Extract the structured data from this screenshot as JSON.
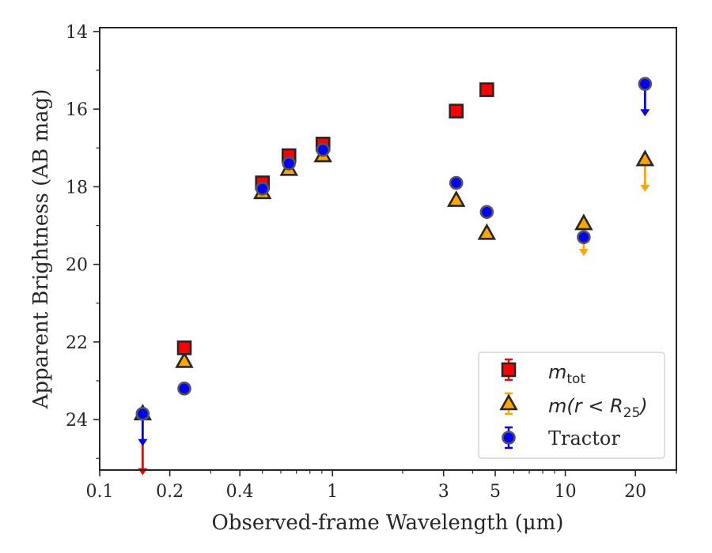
{
  "chart_data": {
    "type": "scatter",
    "xlabel": "Observed-frame Wavelength (μm)",
    "ylabel": "Apparent Brightness (AB mag)",
    "xscale": "log",
    "xlim": [
      0.1,
      30
    ],
    "ylim": [
      25.3,
      13.9
    ],
    "y_inverted": true,
    "x_ticks": [
      {
        "value": 0.1,
        "label": "0.1"
      },
      {
        "value": 0.2,
        "label": "0.2"
      },
      {
        "value": 0.4,
        "label": "0.4"
      },
      {
        "value": 1,
        "label": "1"
      },
      {
        "value": 3,
        "label": "3"
      },
      {
        "value": 5,
        "label": "5"
      },
      {
        "value": 10,
        "label": "10"
      },
      {
        "value": 20,
        "label": "20"
      }
    ],
    "x_minor_ticks": [
      0.3,
      0.5,
      0.6,
      0.7,
      0.8,
      0.9,
      2,
      4,
      6,
      7,
      8,
      9,
      30
    ],
    "y_ticks": [
      {
        "value": 14,
        "label": "14"
      },
      {
        "value": 16,
        "label": "16"
      },
      {
        "value": 18,
        "label": "18"
      },
      {
        "value": 20,
        "label": "20"
      },
      {
        "value": 22,
        "label": "22"
      },
      {
        "value": 24,
        "label": "24"
      }
    ],
    "y_minor_ticks": [
      15,
      17,
      19,
      21,
      23,
      25
    ],
    "grid": false,
    "legend_position": "lower-right",
    "series": [
      {
        "name": "m_tot",
        "legend_main": "m",
        "legend_sub": "tot",
        "marker": "square",
        "color": "#ff0000",
        "points": [
          {
            "x": 0.153,
            "y": 24.6,
            "upper_limit": true
          },
          {
            "x": 0.231,
            "y": 22.15
          },
          {
            "x": 0.5,
            "y": 17.9
          },
          {
            "x": 0.65,
            "y": 17.2
          },
          {
            "x": 0.91,
            "y": 16.9
          },
          {
            "x": 3.4,
            "y": 16.05
          },
          {
            "x": 4.6,
            "y": 15.5
          }
        ]
      },
      {
        "name": "m(r < R25)",
        "legend_main": "m(r < R",
        "legend_sub": "25",
        "legend_tail": ")",
        "marker": "triangle",
        "color": "#ffa500",
        "points": [
          {
            "x": 0.153,
            "y": 23.85
          },
          {
            "x": 0.231,
            "y": 22.5
          },
          {
            "x": 0.5,
            "y": 18.15
          },
          {
            "x": 0.65,
            "y": 17.55
          },
          {
            "x": 0.91,
            "y": 17.2
          },
          {
            "x": 3.4,
            "y": 18.35
          },
          {
            "x": 4.6,
            "y": 19.2
          },
          {
            "x": 12.0,
            "y": 18.95,
            "upper_limit": true
          },
          {
            "x": 22.0,
            "y": 17.3,
            "upper_limit": true
          }
        ]
      },
      {
        "name": "Tractor",
        "legend_main": "Tractor",
        "marker": "circle",
        "color": "#0000ff",
        "points": [
          {
            "x": 0.153,
            "y": 23.85,
            "upper_limit": true
          },
          {
            "x": 0.231,
            "y": 23.2
          },
          {
            "x": 0.5,
            "y": 18.05
          },
          {
            "x": 0.65,
            "y": 17.4
          },
          {
            "x": 0.91,
            "y": 17.05
          },
          {
            "x": 3.4,
            "y": 17.9
          },
          {
            "x": 4.6,
            "y": 18.65
          },
          {
            "x": 12.0,
            "y": 19.3
          },
          {
            "x": 22.0,
            "y": 15.35,
            "upper_limit": true
          }
        ]
      }
    ]
  }
}
